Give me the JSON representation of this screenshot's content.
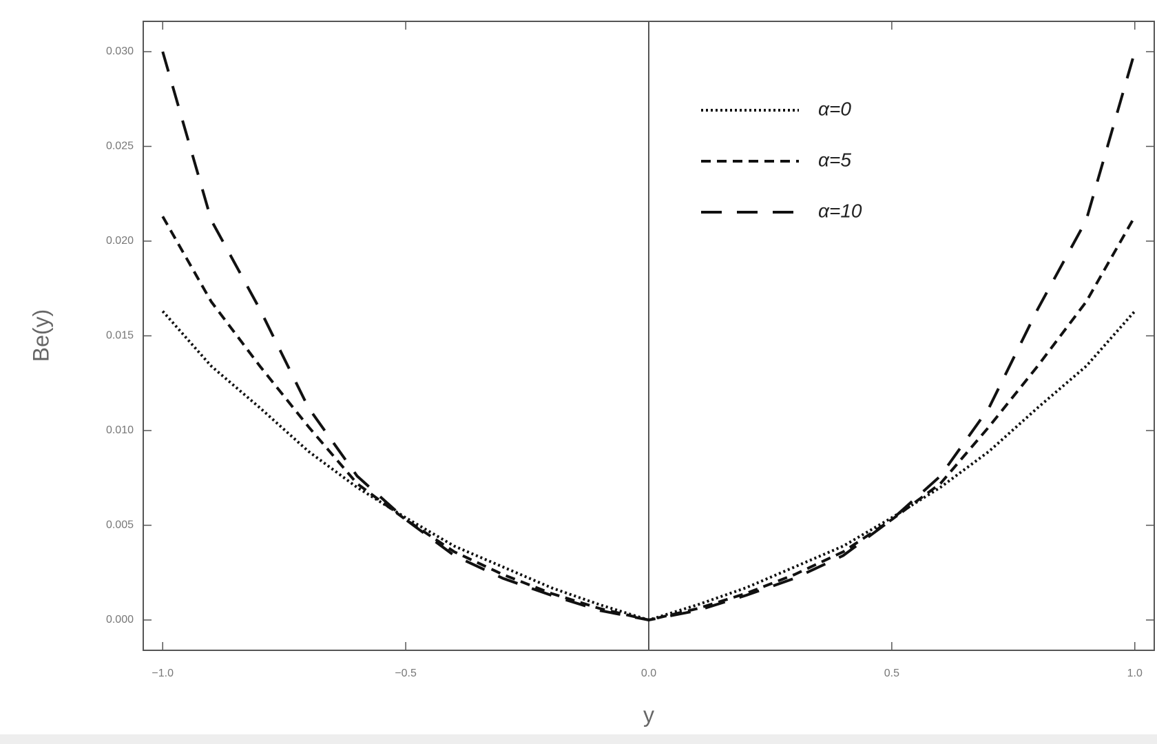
{
  "chart_data": {
    "type": "line",
    "x_label": "y",
    "y_label": "Be(y)",
    "x": [
      -1.0,
      -0.9,
      -0.8,
      -0.7,
      -0.6,
      -0.5,
      -0.4,
      -0.3,
      -0.2,
      -0.1,
      0.0,
      0.1,
      0.2,
      0.3,
      0.4,
      0.5,
      0.6,
      0.7,
      0.8,
      0.9,
      1.0
    ],
    "series": [
      {
        "name": "α=0",
        "color": "#111111",
        "dash": "dotted",
        "values": [
          0.0163,
          0.0134,
          0.0112,
          0.0089,
          0.007,
          0.0054,
          0.0039,
          0.0028,
          0.0017,
          0.0008,
          0.0,
          0.0008,
          0.0017,
          0.0028,
          0.0039,
          0.0054,
          0.007,
          0.0089,
          0.0112,
          0.0134,
          0.0163
        ]
      },
      {
        "name": "α=5",
        "color": "#111111",
        "dash": "dashed",
        "values": [
          0.0213,
          0.0168,
          0.0134,
          0.0102,
          0.0072,
          0.0053,
          0.0036,
          0.0024,
          0.0014,
          0.0006,
          0.0,
          0.0006,
          0.0014,
          0.0024,
          0.0036,
          0.0053,
          0.0072,
          0.0102,
          0.0134,
          0.0168,
          0.0213
        ]
      },
      {
        "name": "α=10",
        "color": "#111111",
        "dash": "long-dashed",
        "values": [
          0.03,
          0.0211,
          0.0164,
          0.0112,
          0.0076,
          0.0053,
          0.0034,
          0.0022,
          0.0013,
          0.0005,
          0.0,
          0.0005,
          0.0013,
          0.0022,
          0.0034,
          0.0053,
          0.0076,
          0.0112,
          0.0164,
          0.0211,
          0.03
        ]
      }
    ],
    "xlim": [
      -1.04,
      1.04
    ],
    "ylim": [
      -0.0016,
      0.0316
    ],
    "xticks": [
      {
        "value": -1.0,
        "label": "−1.0"
      },
      {
        "value": -0.5,
        "label": "−0.5"
      },
      {
        "value": 0.0,
        "label": "0.0"
      },
      {
        "value": 0.5,
        "label": "0.5"
      },
      {
        "value": 1.0,
        "label": "1.0"
      }
    ],
    "yticks": [
      {
        "value": 0.0,
        "label": "0.000"
      },
      {
        "value": 0.005,
        "label": "0.005"
      },
      {
        "value": 0.01,
        "label": "0.010"
      },
      {
        "value": 0.015,
        "label": "0.015"
      },
      {
        "value": 0.02,
        "label": "0.020"
      },
      {
        "value": 0.025,
        "label": "0.025"
      },
      {
        "value": 0.03,
        "label": "0.030"
      }
    ],
    "grid": false,
    "legend": "upper center"
  }
}
